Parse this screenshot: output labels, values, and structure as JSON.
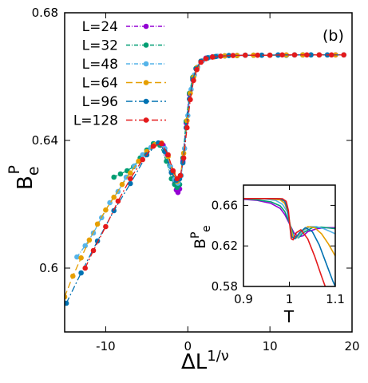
{
  "chart_data": {
    "type": "line",
    "panel_label": "(b)",
    "xlabel": {
      "base": "ΔL",
      "sup": "1/ν"
    },
    "ylabel": {
      "base": "B",
      "sub": "e",
      "sup": "P"
    },
    "xlim": [
      -15,
      20
    ],
    "ylim": [
      0.58,
      0.68
    ],
    "xticks": [
      "-10",
      "0",
      "10",
      "20"
    ],
    "xtick_values": [
      -10,
      0,
      10,
      20
    ],
    "yticks": [
      "0.6",
      "0.64",
      "0.68"
    ],
    "ytick_values": [
      0.6,
      0.64,
      0.68
    ],
    "legend_position": "top-left",
    "series": [
      {
        "name": "L=24",
        "color": "#9400d3",
        "dash": "5,2,1,2",
        "x": [
          -3.0,
          -2.5,
          -2.0,
          -1.6,
          -1.4,
          -1.2,
          -1.0,
          -0.6,
          -0.2,
          0.2,
          0.6,
          1.0,
          1.6,
          2.2,
          3.0,
          4.5,
          6.0,
          8.0,
          10.0,
          12.0,
          14.0,
          16.0,
          18.0
        ],
        "y": [
          0.6385,
          0.6355,
          0.63,
          0.6265,
          0.6245,
          0.6237,
          0.6248,
          0.6335,
          0.6455,
          0.6545,
          0.6595,
          0.6625,
          0.6648,
          0.6658,
          0.6662,
          0.6665,
          0.6666,
          0.6667,
          0.6667,
          0.6667,
          0.6668,
          0.6668,
          0.6668
        ]
      },
      {
        "name": "L=32",
        "color": "#009e73",
        "dash": "5,2,1,2",
        "x": [
          -9.0,
          -8.2,
          -7.4,
          -6.6,
          -5.8,
          -5.0,
          -4.2,
          -3.4,
          -2.6,
          -2.0,
          -1.6,
          -1.3,
          -1.0,
          -0.6,
          -0.2,
          0.2,
          0.6,
          1.0,
          1.6,
          2.4,
          3.2,
          4.5,
          6.0,
          8.0,
          10.0,
          12.0,
          14.0,
          16.0
        ],
        "y": [
          0.6285,
          0.6295,
          0.6305,
          0.6318,
          0.6345,
          0.637,
          0.639,
          0.6385,
          0.6335,
          0.628,
          0.6262,
          0.6253,
          0.6262,
          0.6345,
          0.646,
          0.6548,
          0.6598,
          0.6626,
          0.6648,
          0.6658,
          0.6662,
          0.6665,
          0.6666,
          0.6667,
          0.6667,
          0.6667,
          0.6668,
          0.6668
        ]
      },
      {
        "name": "L=48",
        "color": "#56b4e9",
        "dash": "5,2,1,2",
        "x": [
          -13.5,
          -12.5,
          -11.5,
          -10.5,
          -9.5,
          -8.5,
          -7.5,
          -6.5,
          -5.5,
          -4.5,
          -3.6,
          -2.8,
          -2.1,
          -1.6,
          -1.2,
          -0.8,
          -0.4,
          0.0,
          0.4,
          0.8,
          1.2,
          1.8,
          2.6,
          3.6,
          5.0,
          7.0,
          9.0,
          11.0,
          13.0,
          15.0,
          17.0
        ],
        "y": [
          0.6035,
          0.607,
          0.611,
          0.6158,
          0.6205,
          0.624,
          0.6285,
          0.632,
          0.6355,
          0.6378,
          0.6392,
          0.6375,
          0.6318,
          0.6278,
          0.6266,
          0.629,
          0.6375,
          0.6478,
          0.656,
          0.6605,
          0.663,
          0.665,
          0.666,
          0.6664,
          0.6666,
          0.6667,
          0.6667,
          0.6667,
          0.6668,
          0.6668,
          0.6668
        ]
      },
      {
        "name": "L=64",
        "color": "#e69f00",
        "dash": "8,4",
        "x": [
          -15.0,
          -14.0,
          -13.0,
          -12.0,
          -11.0,
          -10.0,
          -9.0,
          -8.0,
          -7.0,
          -6.0,
          -5.0,
          -4.0,
          -3.2,
          -2.4,
          -1.8,
          -1.3,
          -0.9,
          -0.5,
          -0.1,
          0.3,
          0.7,
          1.1,
          1.6,
          2.3,
          3.2,
          4.5,
          6.0,
          8.0,
          10.0,
          12.0,
          14.0,
          16.0,
          18.0
        ],
        "y": [
          0.591,
          0.5975,
          0.6032,
          0.6088,
          0.6138,
          0.6182,
          0.6222,
          0.6262,
          0.6298,
          0.6335,
          0.6365,
          0.6387,
          0.6392,
          0.635,
          0.6298,
          0.6272,
          0.629,
          0.636,
          0.6462,
          0.6548,
          0.6598,
          0.6628,
          0.6648,
          0.6658,
          0.6662,
          0.6665,
          0.6666,
          0.6667,
          0.6667,
          0.6668,
          0.6668,
          0.6668,
          0.6668
        ]
      },
      {
        "name": "L=96",
        "color": "#0072b2",
        "dash": "8,3,2,3",
        "x": [
          -14.8,
          -13.0,
          -11.0,
          -9.0,
          -7.0,
          -5.0,
          -3.6,
          -2.8,
          -2.0,
          -1.4,
          -1.0,
          -0.6,
          -0.2,
          0.2,
          0.6,
          1.0,
          1.6,
          2.4,
          3.4,
          5.0,
          7.0,
          9.0,
          11.0,
          13.0,
          15.0,
          17.0,
          19.0
        ],
        "y": [
          0.589,
          0.5985,
          0.6085,
          0.618,
          0.6265,
          0.6355,
          0.6392,
          0.6365,
          0.63,
          0.6275,
          0.628,
          0.633,
          0.644,
          0.653,
          0.659,
          0.6624,
          0.6648,
          0.6659,
          0.6663,
          0.6666,
          0.6667,
          0.6667,
          0.6668,
          0.6668,
          0.6668,
          0.6668,
          0.6668
        ]
      },
      {
        "name": "L=128",
        "color": "#e41a1c",
        "dash": "8,3,2,3",
        "x": [
          -12.5,
          -11.5,
          -10.0,
          -8.5,
          -7.0,
          -5.5,
          -4.2,
          -3.2,
          -2.4,
          -1.8,
          -1.3,
          -0.9,
          -0.5,
          -0.1,
          0.3,
          0.7,
          1.1,
          1.6,
          2.2,
          3.0,
          4.0,
          5.5,
          7.0,
          8.5,
          10.0,
          11.5,
          13.0,
          14.5,
          16.0,
          17.5,
          19.0
        ],
        "y": [
          0.6,
          0.6055,
          0.613,
          0.621,
          0.628,
          0.634,
          0.6382,
          0.639,
          0.6355,
          0.6305,
          0.628,
          0.629,
          0.6345,
          0.644,
          0.6528,
          0.6588,
          0.6622,
          0.6645,
          0.6656,
          0.6661,
          0.6664,
          0.6666,
          0.6667,
          0.6667,
          0.6667,
          0.6668,
          0.6668,
          0.6668,
          0.6668,
          0.6668,
          0.6668
        ]
      }
    ],
    "inset": {
      "xlabel": "T",
      "ylabel": {
        "base": "B",
        "sub": "e",
        "sup": "P"
      },
      "xlim": [
        0.9,
        1.1
      ],
      "ylim": [
        0.58,
        0.68
      ],
      "xticks": [
        "0.9",
        "1",
        "1.1"
      ],
      "xtick_values": [
        0.9,
        1.0,
        1.1
      ],
      "yticks": [
        "0.58",
        "0.62",
        "0.66"
      ],
      "ytick_values": [
        0.58,
        0.62,
        0.66
      ],
      "series": [
        {
          "name": "L=24",
          "color": "#9400d3",
          "x": [
            0.9,
            0.93,
            0.96,
            0.98,
            0.99,
            1.0,
            1.01,
            1.02,
            1.03,
            1.04,
            1.06,
            1.08,
            1.1
          ],
          "y": [
            0.666,
            0.665,
            0.662,
            0.657,
            0.651,
            0.642,
            0.633,
            0.629,
            0.63,
            0.634,
            0.637,
            0.638,
            0.638
          ]
        },
        {
          "name": "L=32",
          "color": "#009e73",
          "x": [
            0.9,
            0.93,
            0.96,
            0.98,
            0.99,
            1.0,
            1.01,
            1.02,
            1.03,
            1.05,
            1.07,
            1.09,
            1.1
          ],
          "y": [
            0.6665,
            0.6655,
            0.6635,
            0.6595,
            0.654,
            0.643,
            0.63,
            0.628,
            0.633,
            0.638,
            0.6385,
            0.6375,
            0.637
          ]
        },
        {
          "name": "L=48",
          "color": "#56b4e9",
          "x": [
            0.9,
            0.94,
            0.97,
            0.985,
            0.995,
            1.0,
            1.005,
            1.012,
            1.02,
            1.03,
            1.045,
            1.06,
            1.075,
            1.09,
            1.1
          ],
          "y": [
            0.6668,
            0.6665,
            0.665,
            0.661,
            0.654,
            0.645,
            0.634,
            0.627,
            0.629,
            0.635,
            0.639,
            0.639,
            0.637,
            0.634,
            0.632
          ]
        },
        {
          "name": "L=64",
          "color": "#e69f00",
          "x": [
            0.9,
            0.95,
            0.98,
            0.99,
            0.997,
            1.002,
            1.008,
            1.015,
            1.025,
            1.04,
            1.055,
            1.07,
            1.085,
            1.1
          ],
          "y": [
            0.6668,
            0.6667,
            0.6655,
            0.662,
            0.653,
            0.64,
            0.628,
            0.628,
            0.634,
            0.639,
            0.638,
            0.632,
            0.622,
            0.61
          ]
        },
        {
          "name": "L=96",
          "color": "#0072b2",
          "x": [
            0.9,
            0.95,
            0.98,
            0.99,
            0.996,
            1.0,
            1.005,
            1.012,
            1.022,
            1.035,
            1.05,
            1.065,
            1.08,
            1.095,
            1.1
          ],
          "y": [
            0.6668,
            0.6668,
            0.6665,
            0.664,
            0.656,
            0.644,
            0.629,
            0.627,
            0.633,
            0.638,
            0.634,
            0.621,
            0.603,
            0.585,
            0.58
          ]
        },
        {
          "name": "L=128",
          "color": "#e41a1c",
          "x": [
            0.9,
            0.96,
            0.985,
            0.993,
            0.998,
            1.001,
            1.004,
            1.008,
            1.015,
            1.025,
            1.04,
            1.055,
            1.07,
            1.078
          ],
          "y": [
            0.6668,
            0.6668,
            0.6665,
            0.664,
            0.655,
            0.64,
            0.627,
            0.626,
            0.633,
            0.636,
            0.627,
            0.61,
            0.59,
            0.58
          ]
        }
      ]
    }
  }
}
